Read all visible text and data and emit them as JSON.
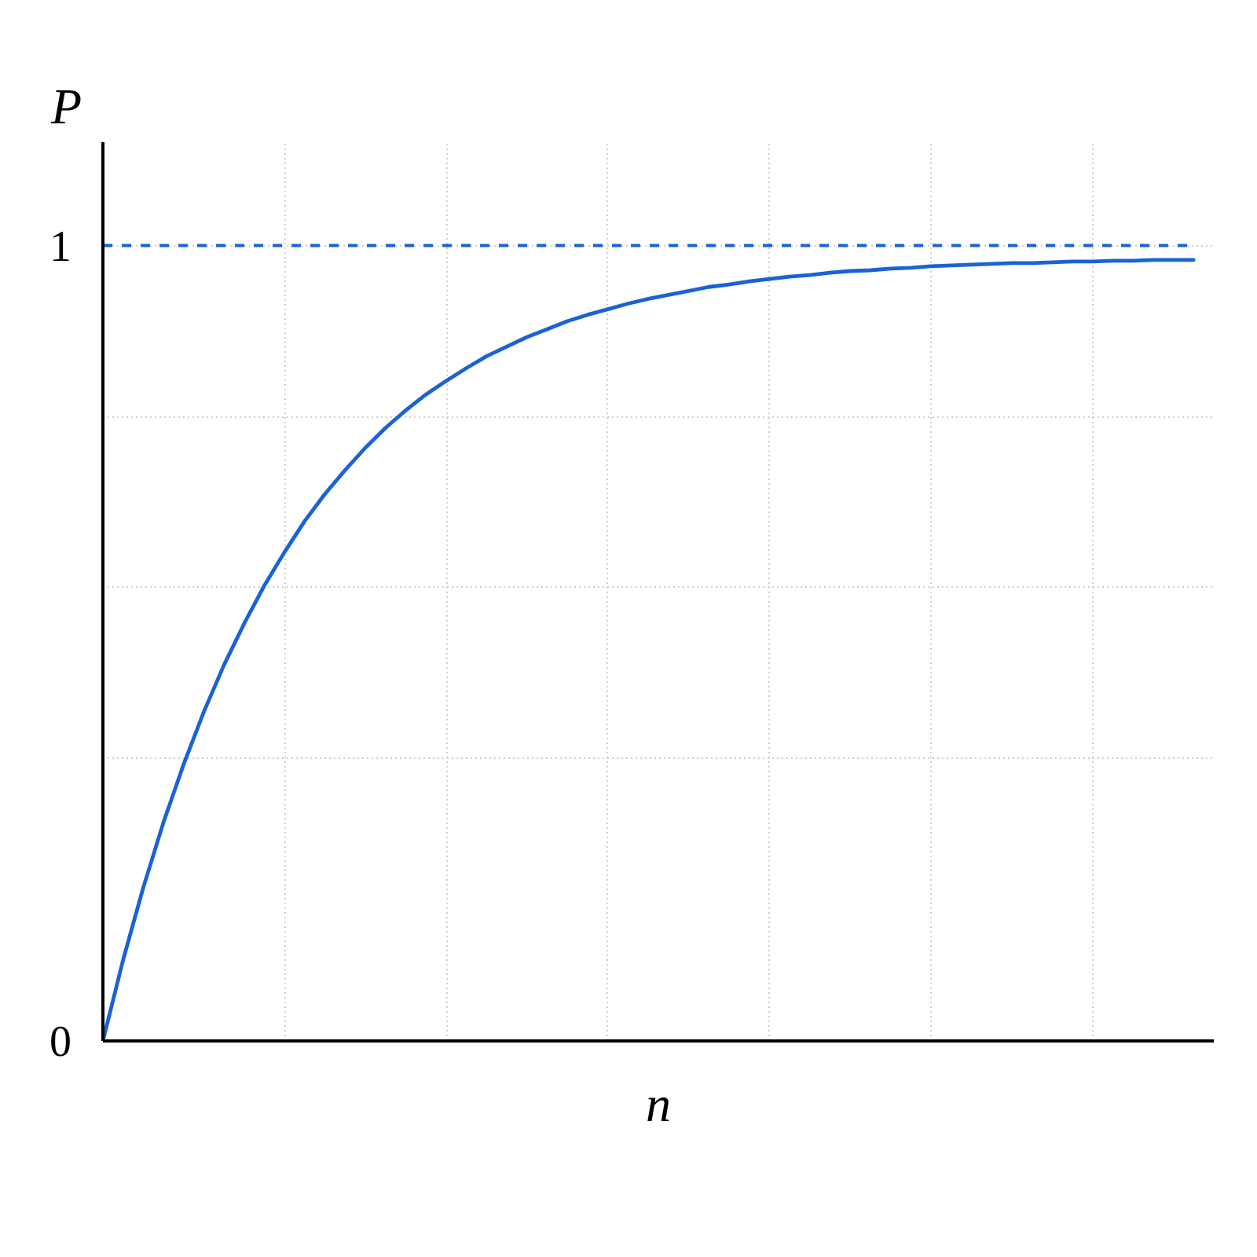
{
  "chart_data": {
    "type": "line",
    "xlabel": "n",
    "ylabel": "P",
    "categories": [
      null,
      null,
      null,
      null,
      null,
      null,
      null,
      null,
      null,
      null,
      null,
      null,
      null,
      null,
      null,
      null,
      null,
      null,
      null,
      null,
      null,
      null,
      null,
      null,
      null,
      null,
      null,
      null,
      null,
      null,
      null,
      null,
      null,
      null,
      null,
      null,
      null,
      null,
      null,
      null,
      null,
      null,
      null,
      null,
      null,
      null,
      null,
      null,
      null,
      null,
      null,
      null,
      null,
      null,
      null
    ],
    "series": [
      {
        "color": "#1a62d6",
        "values": [
          0,
          0.102,
          0.193,
          0.275,
          0.348,
          0.414,
          0.473,
          0.525,
          0.573,
          0.615,
          0.654,
          0.688,
          0.718,
          0.746,
          0.771,
          0.793,
          0.813,
          0.83,
          0.846,
          0.861,
          0.873,
          0.885,
          0.895,
          0.905,
          0.913,
          0.92,
          0.927,
          0.933,
          0.938,
          0.943,
          0.948,
          0.951,
          0.955,
          0.958,
          0.961,
          0.963,
          0.966,
          0.968,
          0.969,
          0.971,
          0.972,
          0.974,
          0.975,
          0.976,
          0.977,
          0.978,
          0.978,
          0.979,
          0.98,
          0.98,
          0.981,
          0.981,
          0.982,
          0.982,
          0.982
        ]
      }
    ],
    "ylim": [
      0,
      1.13
    ],
    "yticks": [
      0,
      {
        "value": 0.355,
        "label": null
      },
      {
        "value": 0.57,
        "label": null
      },
      {
        "value": 0.785,
        "label": null
      },
      1
    ],
    "grid": true,
    "tick_labels": "y",
    "line_style": "solid",
    "ref_lines": [
      {
        "axis": "y",
        "value": 1,
        "color": "#1a62d6",
        "line_style": "dashed"
      }
    ]
  }
}
